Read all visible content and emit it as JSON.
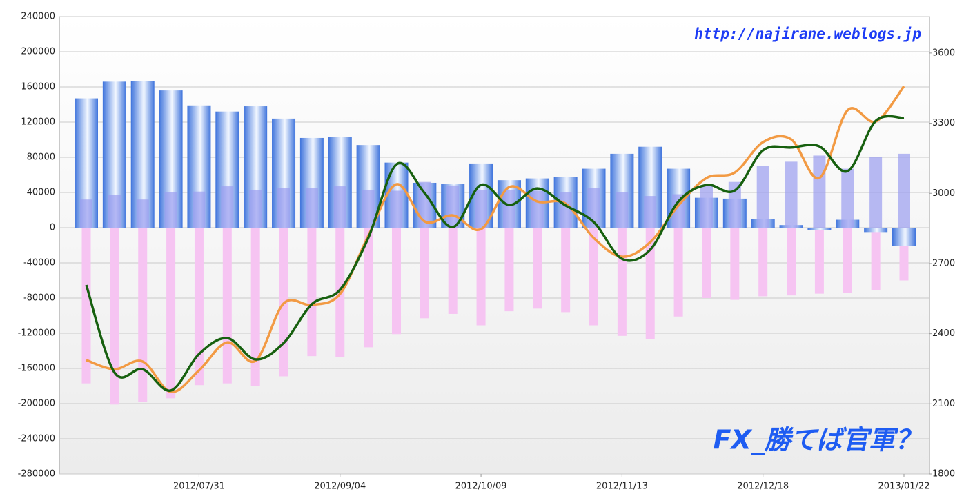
{
  "chart_data": {
    "type": "bar",
    "annotations": [
      "http://najirane.weblogs.jp",
      "FX_勝てば官軍？"
    ],
    "categories": [
      null,
      null,
      null,
      null,
      "2012/07/31",
      null,
      null,
      null,
      null,
      "2012/09/04",
      null,
      null,
      null,
      null,
      "2012/10/09",
      null,
      null,
      null,
      null,
      "2012/11/13",
      null,
      null,
      null,
      null,
      "2012/12/18",
      null,
      null,
      null,
      null,
      "2013/01/22"
    ],
    "ylim": [
      -280000,
      240000
    ],
    "yticks": [
      -280000,
      -240000,
      -200000,
      -160000,
      -120000,
      -80000,
      -40000,
      0,
      40000,
      80000,
      120000,
      160000,
      200000,
      240000
    ],
    "y2lim": [
      1800,
      3756
    ],
    "y2ticks": [
      1800,
      2100,
      2400,
      2700,
      3000,
      3300,
      3600
    ],
    "grid": true,
    "series": [
      {
        "type": "bar",
        "color": "#f6c4f2",
        "values": [
          -177000,
          -201000,
          -198000,
          -194000,
          -179000,
          -177000,
          -180000,
          -169000,
          -146000,
          -147000,
          -136000,
          -121000,
          -103000,
          -98000,
          -111000,
          -95000,
          -92000,
          -96000,
          -111000,
          -123000,
          -127000,
          -101000,
          -80000,
          -82000,
          -78000,
          -77000,
          -75000,
          -74000,
          -71000,
          -60000
        ]
      },
      {
        "type": "bar",
        "color": "#3f74dc",
        "values": [
          147000,
          166000,
          167000,
          156000,
          139000,
          132000,
          138000,
          124000,
          102000,
          103000,
          94000,
          74000,
          51000,
          50000,
          73000,
          54000,
          56000,
          58000,
          67000,
          84000,
          92000,
          67000,
          34000,
          33000,
          10000,
          3000,
          -3000,
          9000,
          -5000,
          -21000
        ]
      },
      {
        "type": "bar",
        "color": "#9a9cf0",
        "values": [
          32000,
          37000,
          32000,
          40000,
          41000,
          47000,
          43000,
          45000,
          45000,
          47000,
          43000,
          42000,
          52000,
          48000,
          43000,
          43000,
          42000,
          40000,
          45000,
          40000,
          36000,
          38000,
          48000,
          52000,
          70000,
          75000,
          82000,
          67000,
          80000,
          84000
        ]
      },
      {
        "type": "line",
        "axis": "y2",
        "color": "#f29a43",
        "values": [
          2287,
          2248,
          2281,
          2151,
          2243,
          2363,
          2284,
          2529,
          2523,
          2570,
          2818,
          3039,
          2880,
          2906,
          2847,
          3027,
          2965,
          2956,
          2809,
          2729,
          2791,
          2948,
          3066,
          3089,
          3219,
          3231,
          3066,
          3355,
          3307,
          3458
        ]
      },
      {
        "type": "line",
        "axis": "y2",
        "color": "#17600f",
        "values": [
          2608,
          2234,
          2248,
          2157,
          2313,
          2381,
          2290,
          2360,
          2526,
          2588,
          2809,
          3124,
          3001,
          2856,
          3036,
          2950,
          3021,
          2948,
          2877,
          2720,
          2759,
          2965,
          3036,
          3012,
          3184,
          3196,
          3201,
          3095,
          3310,
          3322
        ]
      }
    ]
  }
}
